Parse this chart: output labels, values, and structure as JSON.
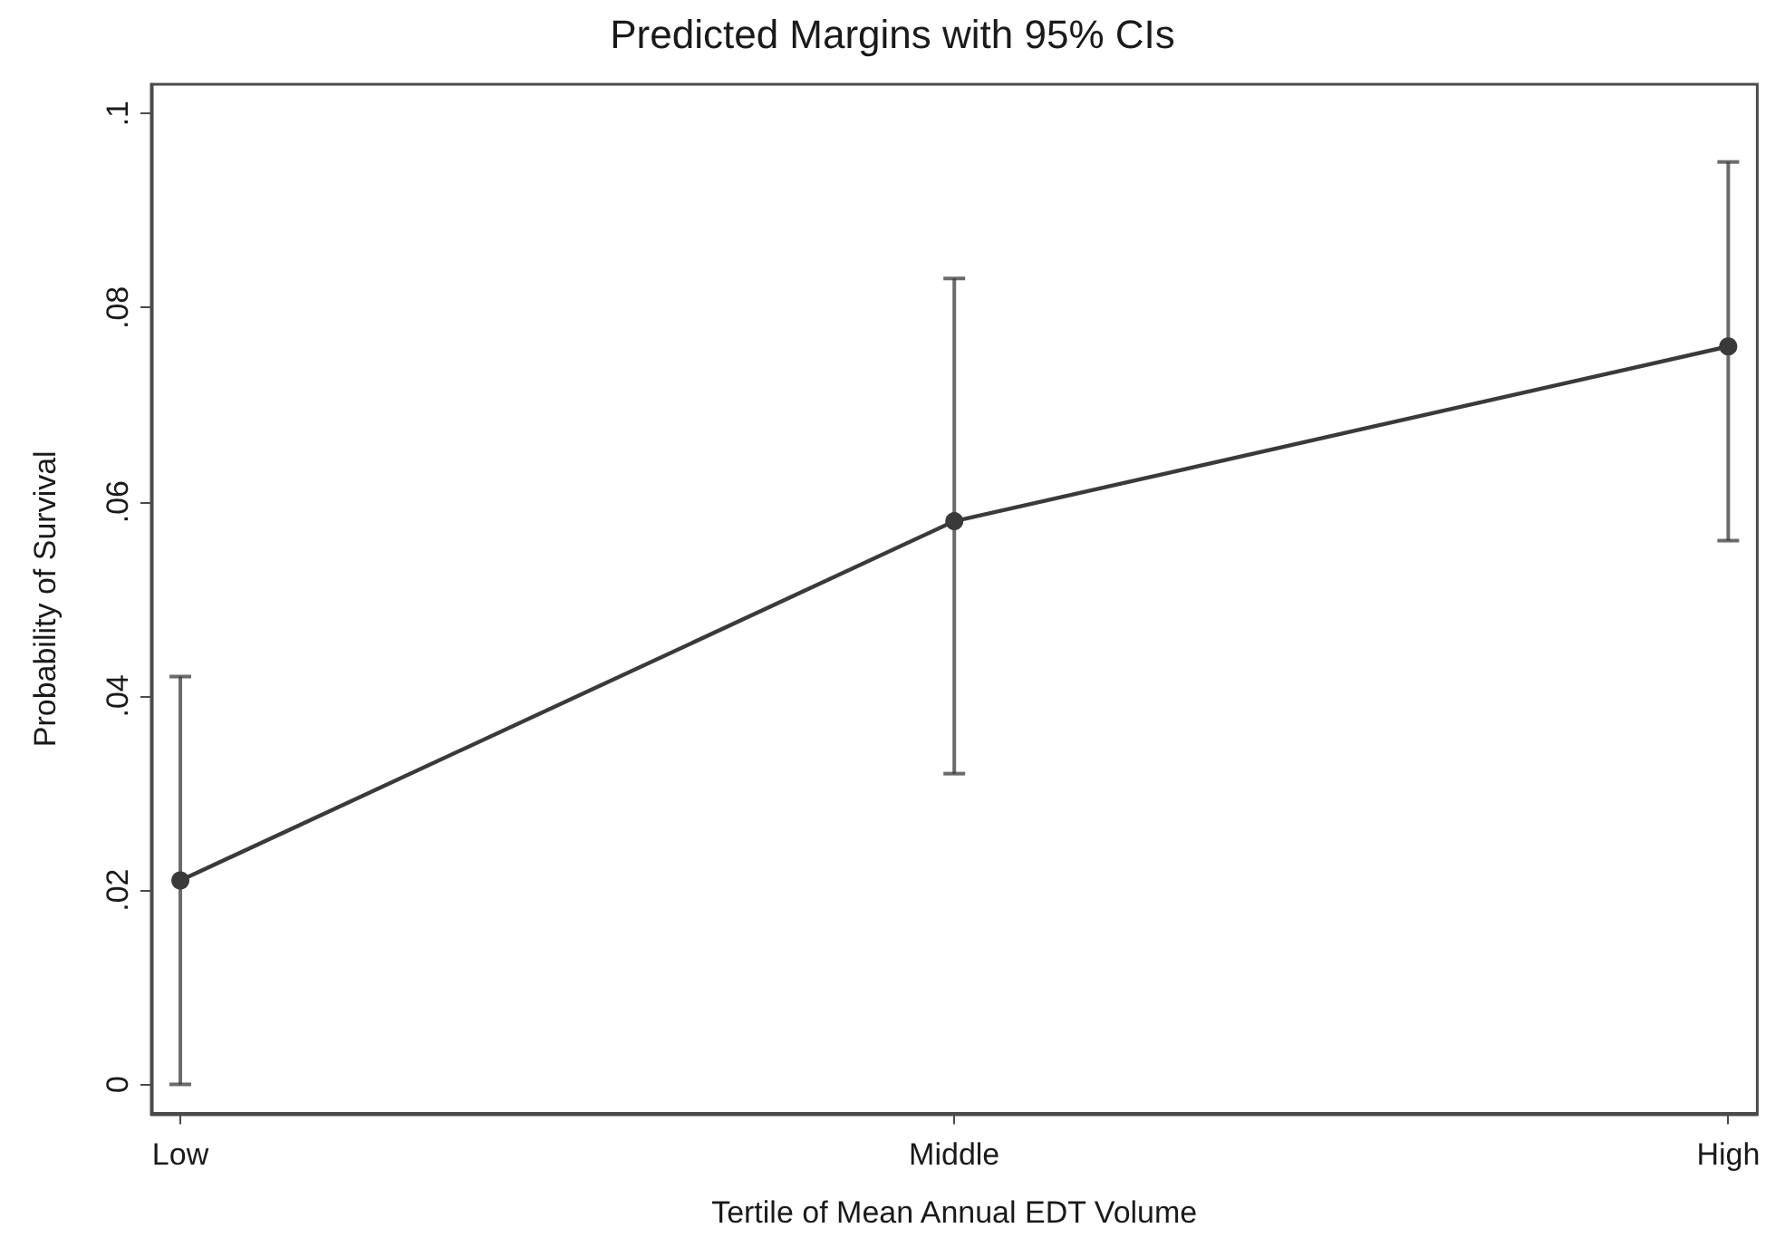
{
  "chart_data": {
    "type": "line",
    "title": "Predicted Margins with 95% CIs",
    "xlabel": "Tertile of Mean Annual EDT Volume",
    "ylabel": "Probability of Survival",
    "categories": [
      "Low",
      "Middle",
      "High"
    ],
    "values": [
      0.021,
      0.058,
      0.076
    ],
    "errors": [
      [
        0,
        0.042
      ],
      [
        0.032,
        0.083
      ],
      [
        0.056,
        0.095
      ]
    ],
    "color": "#3a3a3a",
    "ylim": [
      -0.003,
      0.103
    ],
    "yticks": [
      0,
      {
        "value": 0.02,
        "label": ".02"
      },
      {
        "value": 0.04,
        "label": ".04"
      },
      {
        "value": 0.06,
        "label": ".06"
      },
      {
        "value": 0.08,
        "label": ".08"
      },
      {
        "value": 0.1,
        "label": ".1"
      }
    ],
    "marker": "circle",
    "line_style": "solid",
    "grid": false
  }
}
